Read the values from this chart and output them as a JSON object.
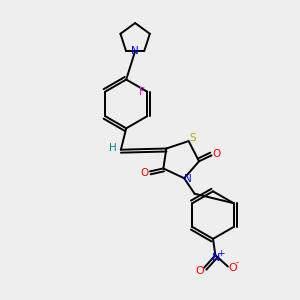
{
  "bg_color": "#eeeeee",
  "atom_colors": {
    "C": "#000000",
    "N": "#0000ff",
    "O": "#ff0000",
    "S": "#bbaa00",
    "F": "#ff00ff",
    "H": "#008888"
  },
  "lw": 1.4,
  "fs": 7.5
}
